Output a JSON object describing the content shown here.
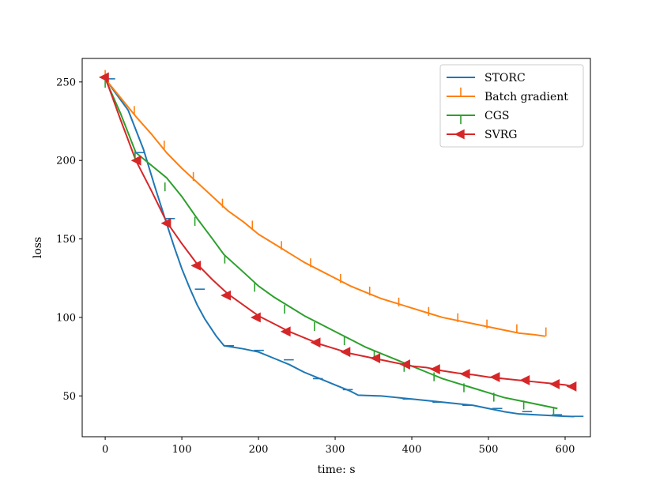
{
  "chart_data": {
    "type": "line",
    "xlabel": "time: s",
    "ylabel": "loss",
    "xlim": [
      -30,
      633
    ],
    "ylim": [
      24,
      265
    ],
    "xticks": [
      0,
      100,
      200,
      300,
      400,
      500,
      600
    ],
    "yticks": [
      50,
      100,
      150,
      200,
      250
    ],
    "grid": false,
    "legend_position": "top-right",
    "series": [
      {
        "name": "STORC",
        "color": "#1f77b4",
        "marker": "tick-right",
        "x": [
          0,
          38,
          78,
          117,
          155,
          194,
          233,
          271,
          310,
          349,
          388,
          427,
          466,
          505,
          544,
          583,
          611
        ],
        "y": [
          252,
          205,
          163,
          118,
          82,
          79,
          73,
          61,
          54,
          50,
          48,
          46,
          44,
          42,
          40,
          38,
          37
        ],
        "x_curve": [
          0,
          30,
          50,
          65,
          80,
          90,
          100,
          110,
          120,
          130,
          145,
          155,
          180,
          200,
          220,
          240,
          260,
          280,
          300,
          320,
          330,
          340,
          360,
          380,
          400,
          420,
          440,
          460,
          480,
          500,
          520,
          540,
          560,
          580,
          600,
          612
        ],
        "y_curve": [
          252,
          232,
          207,
          183,
          160,
          145,
          131,
          119,
          108,
          99,
          88,
          82,
          80,
          78,
          74,
          70,
          65,
          61,
          57,
          53,
          50.5,
          50.3,
          50,
          49,
          48,
          47,
          46,
          45,
          44,
          42,
          40,
          38.5,
          38,
          37.5,
          37,
          36.8
        ]
      },
      {
        "name": "Batch gradient",
        "color": "#ff7f0e",
        "marker": "tick-up",
        "x": [
          0,
          38,
          77,
          115,
          153,
          192,
          230,
          268,
          307,
          345,
          383,
          422,
          460,
          498,
          537,
          575
        ],
        "y": [
          252,
          229,
          207,
          187,
          170,
          156,
          143,
          132,
          122,
          114,
          107,
          101,
          97,
          93,
          90,
          88
        ],
        "x_curve": [
          0,
          20,
          40,
          60,
          80,
          100,
          120,
          140,
          160,
          180,
          200,
          220,
          240,
          260,
          280,
          300,
          320,
          340,
          360,
          380,
          400,
          420,
          440,
          460,
          480,
          500,
          520,
          540,
          560,
          574
        ],
        "y_curve": [
          252,
          240,
          228,
          217,
          205,
          195,
          186,
          177,
          168,
          161,
          153,
          147,
          141,
          135,
          130,
          125,
          120,
          116,
          112,
          109,
          106,
          103,
          100,
          98,
          96,
          94,
          92,
          90,
          89,
          88
        ]
      },
      {
        "name": "CGS",
        "color": "#2ca02c",
        "marker": "tick-down",
        "x": [
          0,
          39,
          78,
          117,
          156,
          195,
          234,
          273,
          312,
          351,
          390,
          429,
          468,
          507,
          546,
          585
        ],
        "y": [
          252,
          205,
          186,
          164,
          140,
          122,
          108,
          97,
          88,
          79,
          71,
          65,
          58,
          52,
          47,
          43
        ],
        "x_curve": [
          0,
          20,
          40,
          60,
          80,
          100,
          120,
          140,
          155,
          180,
          200,
          220,
          240,
          260,
          280,
          300,
          320,
          340,
          360,
          380,
          400,
          420,
          440,
          460,
          480,
          500,
          520,
          540,
          560,
          580,
          590
        ],
        "y_curve": [
          252,
          230,
          205,
          197,
          189,
          177,
          163,
          150,
          140,
          129,
          120,
          113,
          107,
          101,
          96,
          91,
          86,
          81,
          77,
          73,
          69,
          65,
          61,
          58,
          55,
          52,
          49,
          47,
          45,
          43,
          42
        ]
      },
      {
        "name": "SVRG",
        "color": "#d62728",
        "marker": "triangle-left",
        "x": [
          0,
          42,
          81,
          120,
          159,
          198,
          237,
          276,
          315,
          354,
          393,
          432,
          471,
          510,
          549,
          588,
          610
        ],
        "y": [
          253,
          200,
          160,
          133,
          114,
          100,
          91,
          84,
          78,
          74,
          70,
          67,
          64,
          62,
          60,
          57.5,
          56
        ],
        "x_curve": [
          0,
          20,
          40,
          60,
          80,
          100,
          120,
          140,
          160,
          180,
          200,
          220,
          240,
          260,
          280,
          300,
          320,
          340,
          360,
          380,
          400,
          420,
          440,
          460,
          480,
          500,
          520,
          540,
          560,
          580,
          600,
          610
        ],
        "y_curve": [
          253,
          226,
          200,
          181,
          161,
          147,
          134,
          124,
          115,
          108,
          101,
          96,
          91,
          87,
          83,
          80,
          77,
          75,
          73,
          71,
          69,
          68,
          66,
          64.5,
          63.5,
          62,
          61,
          60,
          59,
          58,
          57,
          56
        ]
      }
    ]
  }
}
